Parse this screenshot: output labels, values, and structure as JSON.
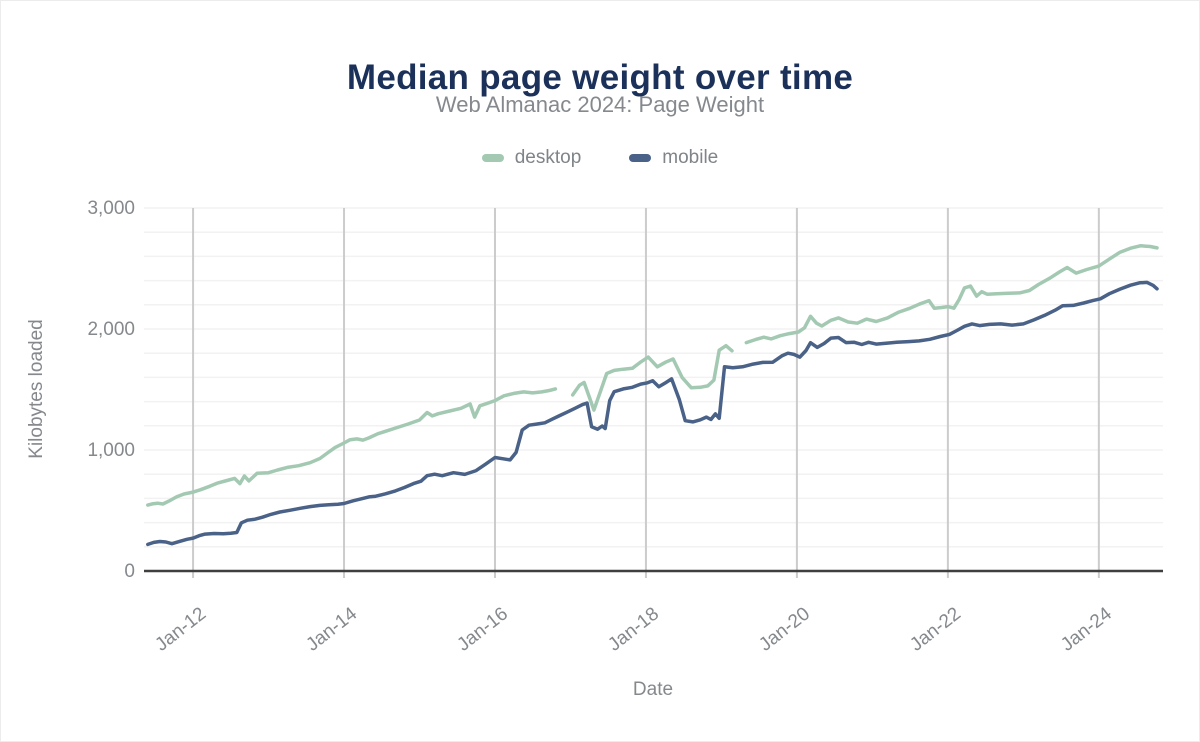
{
  "header": {
    "title": "Median page weight over time",
    "subtitle": "Web Almanac 2024: Page Weight"
  },
  "colors": {
    "title_text": "#1b3159",
    "muted_text": "#85898d",
    "grid_minor": "#f2f2f2",
    "grid_major": "#cccccc",
    "axis_line": "#3f3f3f"
  },
  "chart_data": {
    "type": "line",
    "title": "Median page weight over time",
    "subtitle": "Web Almanac 2024: Page Weight",
    "xlabel": "Date",
    "ylabel": "Kilobytes loaded",
    "units": "KB",
    "xlim": [
      2011.35,
      2024.85
    ],
    "ylim": [
      0,
      3000
    ],
    "y_gridline_step": 200,
    "grid": "on",
    "legend_position": "top",
    "y_ticks": [
      {
        "value": 0,
        "label": "0"
      },
      {
        "value": 1000,
        "label": "1,000"
      },
      {
        "value": 2000,
        "label": "2,000"
      },
      {
        "value": 3000,
        "label": "3,000"
      }
    ],
    "x_ticks": [
      {
        "value": 2012,
        "label": "Jan-12"
      },
      {
        "value": 2014,
        "label": "Jan-14"
      },
      {
        "value": 2016,
        "label": "Jan-16"
      },
      {
        "value": 2018,
        "label": "Jan-18"
      },
      {
        "value": 2020,
        "label": "Jan-20"
      },
      {
        "value": 2022,
        "label": "Jan-22"
      },
      {
        "value": 2024,
        "label": "Jan-24"
      }
    ],
    "series": [
      {
        "name": "desktop",
        "color": "#a3c9b2",
        "points": [
          [
            2011.4,
            545
          ],
          [
            2011.47,
            556
          ],
          [
            2011.53,
            560
          ],
          [
            2011.6,
            554
          ],
          [
            2011.68,
            578
          ],
          [
            2011.78,
            612
          ],
          [
            2011.88,
            636
          ],
          [
            2012.0,
            652
          ],
          [
            2012.1,
            672
          ],
          [
            2012.22,
            700
          ],
          [
            2012.33,
            728
          ],
          [
            2012.45,
            748
          ],
          [
            2012.55,
            765
          ],
          [
            2012.62,
            722
          ],
          [
            2012.68,
            785
          ],
          [
            2012.74,
            745
          ],
          [
            2012.85,
            808
          ],
          [
            2013.0,
            812
          ],
          [
            2013.12,
            835
          ],
          [
            2013.25,
            856
          ],
          [
            2013.4,
            870
          ],
          [
            2013.55,
            895
          ],
          [
            2013.68,
            930
          ],
          [
            2013.78,
            975
          ],
          [
            2013.88,
            1020
          ],
          [
            2014.0,
            1058
          ],
          [
            2014.08,
            1085
          ],
          [
            2014.17,
            1092
          ],
          [
            2014.25,
            1082
          ],
          [
            2014.33,
            1100
          ],
          [
            2014.45,
            1135
          ],
          [
            2014.58,
            1160
          ],
          [
            2014.7,
            1185
          ],
          [
            2014.85,
            1215
          ],
          [
            2015.0,
            1248
          ],
          [
            2015.1,
            1310
          ],
          [
            2015.17,
            1282
          ],
          [
            2015.25,
            1300
          ],
          [
            2015.4,
            1322
          ],
          [
            2015.55,
            1345
          ],
          [
            2015.67,
            1380
          ],
          [
            2015.73,
            1272
          ],
          [
            2015.8,
            1365
          ],
          [
            2015.88,
            1382
          ],
          [
            2016.0,
            1408
          ],
          [
            2016.12,
            1448
          ],
          [
            2016.25,
            1468
          ],
          [
            2016.38,
            1480
          ],
          [
            2016.5,
            1472
          ],
          [
            2016.62,
            1480
          ],
          [
            2016.72,
            1492
          ],
          [
            2016.8,
            1505
          ],
          null,
          [
            2017.03,
            1455
          ],
          [
            2017.12,
            1535
          ],
          [
            2017.18,
            1558
          ],
          [
            2017.25,
            1438
          ],
          [
            2017.31,
            1330
          ],
          [
            2017.4,
            1490
          ],
          [
            2017.48,
            1632
          ],
          [
            2017.58,
            1658
          ],
          [
            2017.7,
            1668
          ],
          [
            2017.82,
            1675
          ],
          [
            2017.92,
            1722
          ],
          [
            2018.03,
            1768
          ],
          [
            2018.15,
            1688
          ],
          [
            2018.26,
            1726
          ],
          [
            2018.36,
            1752
          ],
          [
            2018.48,
            1598
          ],
          [
            2018.6,
            1515
          ],
          [
            2018.72,
            1518
          ],
          [
            2018.82,
            1530
          ],
          [
            2018.9,
            1578
          ],
          [
            2018.97,
            1825
          ],
          [
            2019.06,
            1862
          ],
          [
            2019.14,
            1820
          ],
          null,
          [
            2019.33,
            1888
          ],
          [
            2019.45,
            1912
          ],
          [
            2019.56,
            1932
          ],
          [
            2019.66,
            1918
          ],
          [
            2019.78,
            1945
          ],
          [
            2019.9,
            1962
          ],
          [
            2020.02,
            1975
          ],
          [
            2020.1,
            2010
          ],
          [
            2020.18,
            2105
          ],
          [
            2020.26,
            2048
          ],
          [
            2020.33,
            2025
          ],
          [
            2020.45,
            2072
          ],
          [
            2020.55,
            2092
          ],
          [
            2020.68,
            2058
          ],
          [
            2020.8,
            2048
          ],
          [
            2020.92,
            2082
          ],
          [
            2021.05,
            2062
          ],
          [
            2021.2,
            2092
          ],
          [
            2021.35,
            2140
          ],
          [
            2021.5,
            2172
          ],
          [
            2021.62,
            2205
          ],
          [
            2021.75,
            2235
          ],
          [
            2021.82,
            2172
          ],
          [
            2021.92,
            2178
          ],
          [
            2022.0,
            2185
          ],
          [
            2022.08,
            2172
          ],
          [
            2022.15,
            2245
          ],
          [
            2022.22,
            2340
          ],
          [
            2022.3,
            2355
          ],
          [
            2022.38,
            2272
          ],
          [
            2022.45,
            2308
          ],
          [
            2022.52,
            2288
          ],
          [
            2022.65,
            2292
          ],
          [
            2022.8,
            2295
          ],
          [
            2022.95,
            2298
          ],
          [
            2023.08,
            2318
          ],
          [
            2023.2,
            2368
          ],
          [
            2023.35,
            2420
          ],
          [
            2023.48,
            2472
          ],
          [
            2023.58,
            2508
          ],
          [
            2023.7,
            2462
          ],
          [
            2023.84,
            2492
          ],
          [
            2024.0,
            2520
          ],
          [
            2024.14,
            2578
          ],
          [
            2024.28,
            2635
          ],
          [
            2024.42,
            2668
          ],
          [
            2024.55,
            2688
          ],
          [
            2024.68,
            2682
          ],
          [
            2024.77,
            2670
          ]
        ]
      },
      {
        "name": "mobile",
        "color": "#4a6287",
        "points": [
          [
            2011.4,
            220
          ],
          [
            2011.48,
            236
          ],
          [
            2011.56,
            244
          ],
          [
            2011.64,
            240
          ],
          [
            2011.72,
            226
          ],
          [
            2011.82,
            245
          ],
          [
            2011.92,
            262
          ],
          [
            2012.0,
            272
          ],
          [
            2012.08,
            292
          ],
          [
            2012.16,
            305
          ],
          [
            2012.28,
            310
          ],
          [
            2012.4,
            308
          ],
          [
            2012.5,
            312
          ],
          [
            2012.58,
            318
          ],
          [
            2012.64,
            398
          ],
          [
            2012.72,
            420
          ],
          [
            2012.82,
            428
          ],
          [
            2012.92,
            445
          ],
          [
            2013.03,
            468
          ],
          [
            2013.15,
            488
          ],
          [
            2013.28,
            502
          ],
          [
            2013.42,
            518
          ],
          [
            2013.55,
            532
          ],
          [
            2013.68,
            542
          ],
          [
            2013.8,
            548
          ],
          [
            2013.92,
            552
          ],
          [
            2014.0,
            558
          ],
          [
            2014.12,
            580
          ],
          [
            2014.25,
            600
          ],
          [
            2014.33,
            612
          ],
          [
            2014.42,
            618
          ],
          [
            2014.55,
            638
          ],
          [
            2014.68,
            662
          ],
          [
            2014.8,
            690
          ],
          [
            2014.92,
            722
          ],
          [
            2015.02,
            742
          ],
          [
            2015.1,
            788
          ],
          [
            2015.2,
            800
          ],
          [
            2015.3,
            788
          ],
          [
            2015.45,
            812
          ],
          [
            2015.6,
            798
          ],
          [
            2015.75,
            830
          ],
          [
            2015.88,
            885
          ],
          [
            2016.0,
            938
          ],
          [
            2016.1,
            928
          ],
          [
            2016.2,
            918
          ],
          [
            2016.28,
            980
          ],
          [
            2016.36,
            1165
          ],
          [
            2016.45,
            1205
          ],
          [
            2016.56,
            1215
          ],
          [
            2016.66,
            1225
          ],
          [
            2016.76,
            1255
          ],
          [
            2016.86,
            1285
          ],
          [
            2016.96,
            1315
          ],
          [
            2017.06,
            1345
          ],
          [
            2017.16,
            1375
          ],
          [
            2017.22,
            1388
          ],
          [
            2017.28,
            1192
          ],
          [
            2017.36,
            1172
          ],
          [
            2017.42,
            1198
          ],
          [
            2017.46,
            1178
          ],
          [
            2017.52,
            1408
          ],
          [
            2017.58,
            1482
          ],
          [
            2017.7,
            1505
          ],
          [
            2017.82,
            1518
          ],
          [
            2017.93,
            1545
          ],
          [
            2018.02,
            1555
          ],
          [
            2018.09,
            1572
          ],
          [
            2018.17,
            1522
          ],
          [
            2018.26,
            1556
          ],
          [
            2018.34,
            1588
          ],
          [
            2018.44,
            1420
          ],
          [
            2018.52,
            1242
          ],
          [
            2018.62,
            1232
          ],
          [
            2018.72,
            1250
          ],
          [
            2018.8,
            1272
          ],
          [
            2018.86,
            1252
          ],
          [
            2018.92,
            1298
          ],
          [
            2018.97,
            1262
          ],
          [
            2019.04,
            1688
          ],
          [
            2019.15,
            1680
          ],
          [
            2019.28,
            1688
          ],
          [
            2019.42,
            1710
          ],
          [
            2019.55,
            1724
          ],
          [
            2019.68,
            1726
          ],
          [
            2019.8,
            1778
          ],
          [
            2019.88,
            1800
          ],
          [
            2019.96,
            1790
          ],
          [
            2020.04,
            1768
          ],
          [
            2020.12,
            1822
          ],
          [
            2020.18,
            1887
          ],
          [
            2020.27,
            1848
          ],
          [
            2020.36,
            1880
          ],
          [
            2020.45,
            1925
          ],
          [
            2020.55,
            1930
          ],
          [
            2020.65,
            1888
          ],
          [
            2020.76,
            1890
          ],
          [
            2020.86,
            1872
          ],
          [
            2020.95,
            1890
          ],
          [
            2021.05,
            1875
          ],
          [
            2021.18,
            1882
          ],
          [
            2021.32,
            1890
          ],
          [
            2021.48,
            1896
          ],
          [
            2021.62,
            1902
          ],
          [
            2021.76,
            1915
          ],
          [
            2021.9,
            1938
          ],
          [
            2022.02,
            1955
          ],
          [
            2022.12,
            1988
          ],
          [
            2022.22,
            2022
          ],
          [
            2022.32,
            2042
          ],
          [
            2022.42,
            2028
          ],
          [
            2022.55,
            2038
          ],
          [
            2022.7,
            2042
          ],
          [
            2022.85,
            2032
          ],
          [
            2023.0,
            2042
          ],
          [
            2023.14,
            2075
          ],
          [
            2023.28,
            2112
          ],
          [
            2023.42,
            2155
          ],
          [
            2023.52,
            2192
          ],
          [
            2023.66,
            2195
          ],
          [
            2023.8,
            2215
          ],
          [
            2023.92,
            2235
          ],
          [
            2024.02,
            2250
          ],
          [
            2024.14,
            2292
          ],
          [
            2024.28,
            2330
          ],
          [
            2024.42,
            2362
          ],
          [
            2024.54,
            2382
          ],
          [
            2024.64,
            2385
          ],
          [
            2024.72,
            2360
          ],
          [
            2024.77,
            2332
          ]
        ]
      }
    ]
  }
}
